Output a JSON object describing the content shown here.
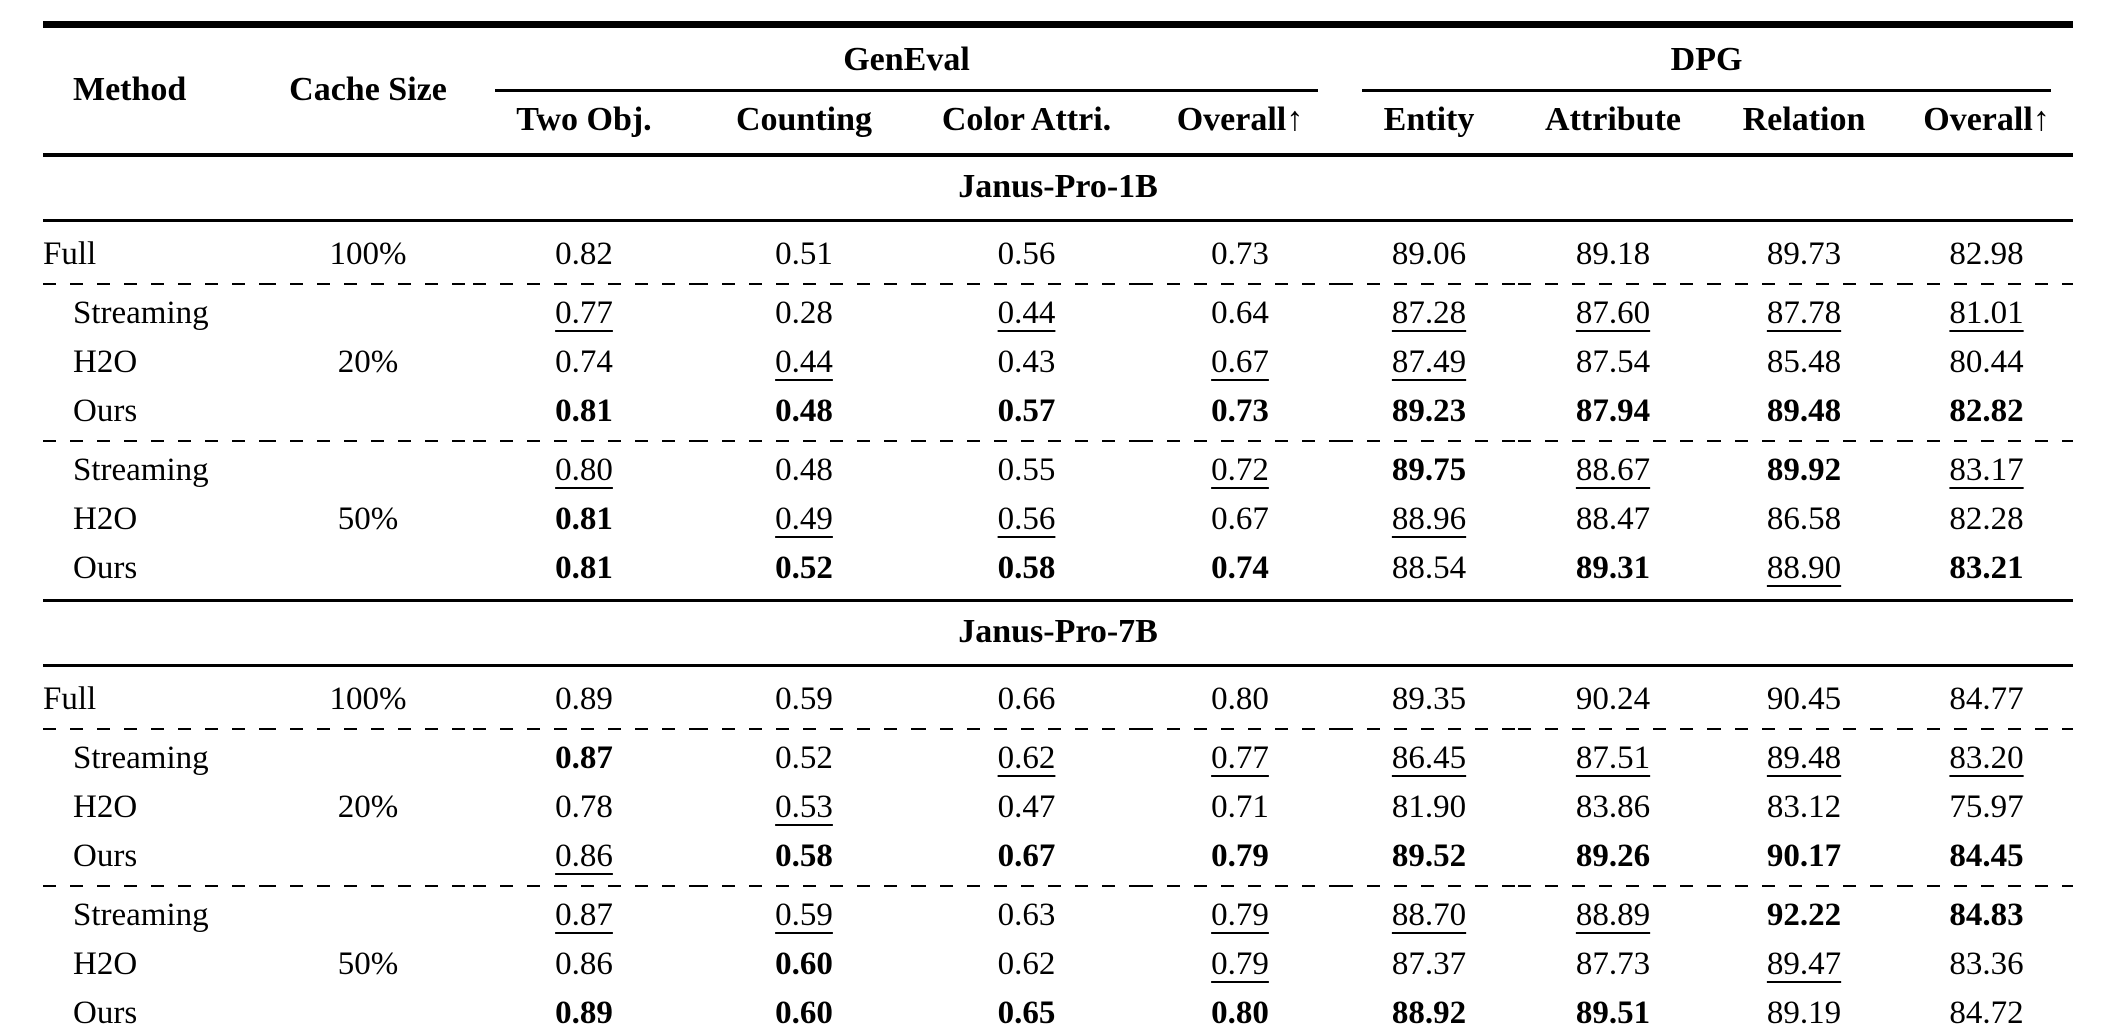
{
  "table": {
    "header": {
      "method": "Method",
      "cache_size": "Cache Size",
      "groups": [
        {
          "label": "GenEval",
          "columns": [
            "Two Obj.",
            "Counting",
            "Color Attri.",
            "Overall↑"
          ]
        },
        {
          "label": "DPG",
          "columns": [
            "Entity",
            "Attribute",
            "Relation",
            "Overall↑"
          ]
        }
      ]
    },
    "sections": [
      {
        "title": "Janus-Pro-1B",
        "blocks": [
          {
            "cache_size": "100%",
            "rows": [
              {
                "method": "Full",
                "cells": [
                  {
                    "v": "0.82",
                    "s": ""
                  },
                  {
                    "v": "0.51",
                    "s": ""
                  },
                  {
                    "v": "0.56",
                    "s": ""
                  },
                  {
                    "v": "0.73",
                    "s": ""
                  },
                  {
                    "v": "89.06",
                    "s": ""
                  },
                  {
                    "v": "89.18",
                    "s": ""
                  },
                  {
                    "v": "89.73",
                    "s": ""
                  },
                  {
                    "v": "82.98",
                    "s": ""
                  }
                ]
              }
            ]
          },
          {
            "cache_size": "20%",
            "rows": [
              {
                "method": "Streaming",
                "cells": [
                  {
                    "v": "0.77",
                    "s": "u"
                  },
                  {
                    "v": "0.28",
                    "s": ""
                  },
                  {
                    "v": "0.44",
                    "s": "u"
                  },
                  {
                    "v": "0.64",
                    "s": ""
                  },
                  {
                    "v": "87.28",
                    "s": "u"
                  },
                  {
                    "v": "87.60",
                    "s": "u"
                  },
                  {
                    "v": "87.78",
                    "s": "u"
                  },
                  {
                    "v": "81.01",
                    "s": "u"
                  }
                ]
              },
              {
                "method": "H2O",
                "cells": [
                  {
                    "v": "0.74",
                    "s": ""
                  },
                  {
                    "v": "0.44",
                    "s": "u"
                  },
                  {
                    "v": "0.43",
                    "s": ""
                  },
                  {
                    "v": "0.67",
                    "s": "u"
                  },
                  {
                    "v": "87.49",
                    "s": "u"
                  },
                  {
                    "v": "87.54",
                    "s": ""
                  },
                  {
                    "v": "85.48",
                    "s": ""
                  },
                  {
                    "v": "80.44",
                    "s": ""
                  }
                ]
              },
              {
                "method": "Ours",
                "cells": [
                  {
                    "v": "0.81",
                    "s": "b"
                  },
                  {
                    "v": "0.48",
                    "s": "b"
                  },
                  {
                    "v": "0.57",
                    "s": "b"
                  },
                  {
                    "v": "0.73",
                    "s": "b"
                  },
                  {
                    "v": "89.23",
                    "s": "b"
                  },
                  {
                    "v": "87.94",
                    "s": "b"
                  },
                  {
                    "v": "89.48",
                    "s": "b"
                  },
                  {
                    "v": "82.82",
                    "s": "b"
                  }
                ]
              }
            ]
          },
          {
            "cache_size": "50%",
            "rows": [
              {
                "method": "Streaming",
                "cells": [
                  {
                    "v": "0.80",
                    "s": "u"
                  },
                  {
                    "v": "0.48",
                    "s": ""
                  },
                  {
                    "v": "0.55",
                    "s": ""
                  },
                  {
                    "v": "0.72",
                    "s": "u"
                  },
                  {
                    "v": "89.75",
                    "s": "b"
                  },
                  {
                    "v": "88.67",
                    "s": "u"
                  },
                  {
                    "v": "89.92",
                    "s": "b"
                  },
                  {
                    "v": "83.17",
                    "s": "u"
                  }
                ]
              },
              {
                "method": "H2O",
                "cells": [
                  {
                    "v": "0.81",
                    "s": "b"
                  },
                  {
                    "v": "0.49",
                    "s": "u"
                  },
                  {
                    "v": "0.56",
                    "s": "u"
                  },
                  {
                    "v": "0.67",
                    "s": ""
                  },
                  {
                    "v": "88.96",
                    "s": "u"
                  },
                  {
                    "v": "88.47",
                    "s": ""
                  },
                  {
                    "v": "86.58",
                    "s": ""
                  },
                  {
                    "v": "82.28",
                    "s": ""
                  }
                ]
              },
              {
                "method": "Ours",
                "cells": [
                  {
                    "v": "0.81",
                    "s": "b"
                  },
                  {
                    "v": "0.52",
                    "s": "b"
                  },
                  {
                    "v": "0.58",
                    "s": "b"
                  },
                  {
                    "v": "0.74",
                    "s": "b"
                  },
                  {
                    "v": "88.54",
                    "s": ""
                  },
                  {
                    "v": "89.31",
                    "s": "b"
                  },
                  {
                    "v": "88.90",
                    "s": "u"
                  },
                  {
                    "v": "83.21",
                    "s": "b"
                  }
                ]
              }
            ]
          }
        ]
      },
      {
        "title": "Janus-Pro-7B",
        "blocks": [
          {
            "cache_size": "100%",
            "rows": [
              {
                "method": "Full",
                "cells": [
                  {
                    "v": "0.89",
                    "s": ""
                  },
                  {
                    "v": "0.59",
                    "s": ""
                  },
                  {
                    "v": "0.66",
                    "s": ""
                  },
                  {
                    "v": "0.80",
                    "s": ""
                  },
                  {
                    "v": "89.35",
                    "s": ""
                  },
                  {
                    "v": "90.24",
                    "s": ""
                  },
                  {
                    "v": "90.45",
                    "s": ""
                  },
                  {
                    "v": "84.77",
                    "s": ""
                  }
                ]
              }
            ]
          },
          {
            "cache_size": "20%",
            "rows": [
              {
                "method": "Streaming",
                "cells": [
                  {
                    "v": "0.87",
                    "s": "b"
                  },
                  {
                    "v": "0.52",
                    "s": ""
                  },
                  {
                    "v": "0.62",
                    "s": "u"
                  },
                  {
                    "v": "0.77",
                    "s": "u"
                  },
                  {
                    "v": "86.45",
                    "s": "u"
                  },
                  {
                    "v": "87.51",
                    "s": "u"
                  },
                  {
                    "v": "89.48",
                    "s": "u"
                  },
                  {
                    "v": "83.20",
                    "s": "u"
                  }
                ]
              },
              {
                "method": "H2O",
                "cells": [
                  {
                    "v": "0.78",
                    "s": ""
                  },
                  {
                    "v": "0.53",
                    "s": "u"
                  },
                  {
                    "v": "0.47",
                    "s": ""
                  },
                  {
                    "v": "0.71",
                    "s": ""
                  },
                  {
                    "v": "81.90",
                    "s": ""
                  },
                  {
                    "v": "83.86",
                    "s": ""
                  },
                  {
                    "v": "83.12",
                    "s": ""
                  },
                  {
                    "v": "75.97",
                    "s": ""
                  }
                ]
              },
              {
                "method": "Ours",
                "cells": [
                  {
                    "v": "0.86",
                    "s": "u"
                  },
                  {
                    "v": "0.58",
                    "s": "b"
                  },
                  {
                    "v": "0.67",
                    "s": "b"
                  },
                  {
                    "v": "0.79",
                    "s": "b"
                  },
                  {
                    "v": "89.52",
                    "s": "b"
                  },
                  {
                    "v": "89.26",
                    "s": "b"
                  },
                  {
                    "v": "90.17",
                    "s": "b"
                  },
                  {
                    "v": "84.45",
                    "s": "b"
                  }
                ]
              }
            ]
          },
          {
            "cache_size": "50%",
            "rows": [
              {
                "method": "Streaming",
                "cells": [
                  {
                    "v": "0.87",
                    "s": "u"
                  },
                  {
                    "v": "0.59",
                    "s": "u"
                  },
                  {
                    "v": "0.63",
                    "s": ""
                  },
                  {
                    "v": "0.79",
                    "s": "u"
                  },
                  {
                    "v": "88.70",
                    "s": "u"
                  },
                  {
                    "v": "88.89",
                    "s": "u"
                  },
                  {
                    "v": "92.22",
                    "s": "b"
                  },
                  {
                    "v": "84.83",
                    "s": "b"
                  }
                ]
              },
              {
                "method": "H2O",
                "cells": [
                  {
                    "v": "0.86",
                    "s": ""
                  },
                  {
                    "v": "0.60",
                    "s": "b"
                  },
                  {
                    "v": "0.62",
                    "s": ""
                  },
                  {
                    "v": "0.79",
                    "s": "u"
                  },
                  {
                    "v": "87.37",
                    "s": ""
                  },
                  {
                    "v": "87.73",
                    "s": ""
                  },
                  {
                    "v": "89.47",
                    "s": "u"
                  },
                  {
                    "v": "83.36",
                    "s": ""
                  }
                ]
              },
              {
                "method": "Ours",
                "cells": [
                  {
                    "v": "0.89",
                    "s": "b"
                  },
                  {
                    "v": "0.60",
                    "s": "b"
                  },
                  {
                    "v": "0.65",
                    "s": "b"
                  },
                  {
                    "v": "0.80",
                    "s": "b"
                  },
                  {
                    "v": "88.92",
                    "s": "b"
                  },
                  {
                    "v": "89.51",
                    "s": "b"
                  },
                  {
                    "v": "89.19",
                    "s": ""
                  },
                  {
                    "v": "84.72",
                    "s": "u"
                  }
                ]
              }
            ]
          }
        ]
      }
    ]
  }
}
